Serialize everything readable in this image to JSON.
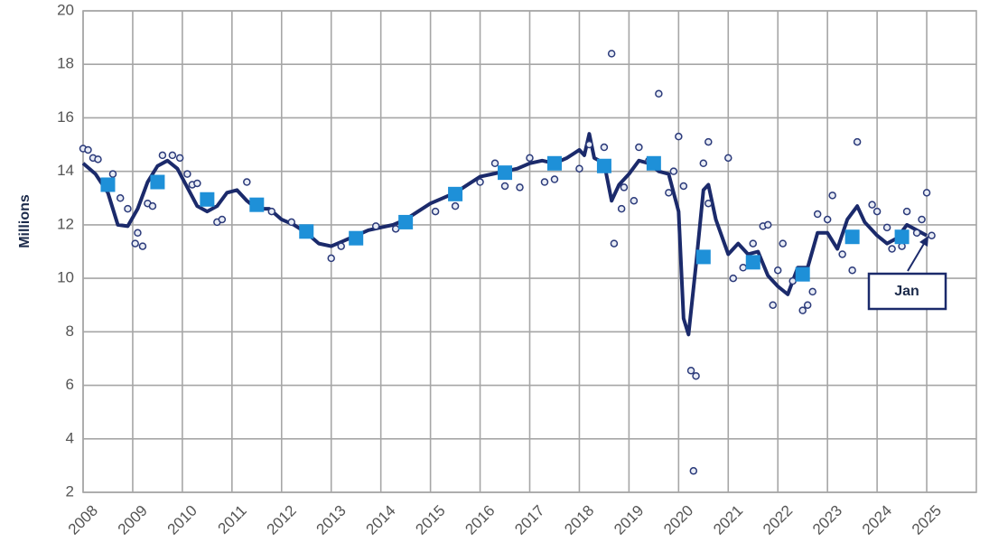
{
  "chart_data": {
    "type": "line",
    "y_label": "Millions",
    "annotation": "Jan",
    "xlim": [
      2008,
      2026
    ],
    "xticks": [
      2008,
      2009,
      2010,
      2011,
      2012,
      2013,
      2014,
      2015,
      2016,
      2017,
      2018,
      2019,
      2020,
      2021,
      2022,
      2023,
      2024,
      2025
    ],
    "ylim": [
      2,
      20
    ],
    "yticks": [
      2,
      4,
      6,
      8,
      10,
      12,
      14,
      16,
      18,
      20
    ],
    "grid": true,
    "series": [
      {
        "type": "line",
        "color": "#1b2a6b",
        "x": [
          2008.0,
          2008.25,
          2008.5,
          2008.7,
          2008.9,
          2009.1,
          2009.3,
          2009.5,
          2009.7,
          2009.9,
          2010.1,
          2010.3,
          2010.5,
          2010.7,
          2010.9,
          2011.1,
          2011.3,
          2011.5,
          2011.75,
          2012.0,
          2012.25,
          2012.5,
          2012.75,
          2013.0,
          2013.25,
          2013.5,
          2013.75,
          2014.0,
          2014.25,
          2014.5,
          2014.75,
          2015.0,
          2015.25,
          2015.5,
          2015.75,
          2016.0,
          2016.25,
          2016.5,
          2016.75,
          2017.0,
          2017.25,
          2017.5,
          2017.75,
          2018.0,
          2018.1,
          2018.2,
          2018.3,
          2018.5,
          2018.65,
          2018.8,
          2019.0,
          2019.2,
          2019.4,
          2019.6,
          2019.8,
          2020.0,
          2020.1,
          2020.2,
          2020.35,
          2020.5,
          2020.6,
          2020.75,
          2021.0,
          2021.2,
          2021.4,
          2021.6,
          2021.8,
          2022.0,
          2022.2,
          2022.4,
          2022.6,
          2022.8,
          2023.0,
          2023.2,
          2023.4,
          2023.6,
          2023.75,
          2024.0,
          2024.2,
          2024.4,
          2024.6,
          2024.8,
          2025.0
        ],
        "values": [
          14.3,
          13.9,
          13.2,
          12.0,
          11.95,
          12.6,
          13.6,
          14.2,
          14.4,
          14.1,
          13.4,
          12.7,
          12.5,
          12.7,
          13.2,
          13.3,
          12.9,
          12.6,
          12.6,
          12.2,
          12.0,
          11.7,
          11.3,
          11.2,
          11.4,
          11.6,
          11.8,
          11.9,
          12.0,
          12.2,
          12.5,
          12.8,
          13.0,
          13.2,
          13.5,
          13.8,
          13.9,
          14.0,
          14.1,
          14.3,
          14.4,
          14.3,
          14.5,
          14.8,
          14.6,
          15.4,
          14.5,
          14.3,
          12.9,
          13.5,
          13.9,
          14.4,
          14.3,
          14.0,
          13.9,
          12.5,
          8.5,
          7.9,
          10.5,
          13.3,
          13.5,
          12.2,
          10.9,
          11.3,
          10.9,
          11.0,
          10.1,
          9.7,
          9.4,
          10.4,
          10.4,
          11.7,
          11.7,
          11.1,
          12.2,
          12.7,
          12.1,
          11.6,
          11.3,
          11.5,
          12.0,
          11.8,
          11.6
        ]
      },
      {
        "type": "scatter",
        "color": "#2b3a7a",
        "x": [
          2008.0,
          2008.1,
          2008.2,
          2008.3,
          2008.6,
          2008.75,
          2008.9,
          2009.05,
          2009.1,
          2009.2,
          2009.3,
          2009.4,
          2009.6,
          2009.8,
          2009.95,
          2010.1,
          2010.2,
          2010.3,
          2010.7,
          2010.8,
          2011.3,
          2011.8,
          2012.2,
          2013.0,
          2013.2,
          2013.9,
          2014.3,
          2015.1,
          2015.5,
          2016.0,
          2016.3,
          2016.5,
          2016.8,
          2017.0,
          2017.3,
          2017.5,
          2018.0,
          2018.2,
          2018.5,
          2018.65,
          2018.7,
          2018.85,
          2018.9,
          2019.1,
          2019.2,
          2019.4,
          2019.6,
          2019.8,
          2019.9,
          2020.0,
          2020.1,
          2020.25,
          2020.3,
          2020.35,
          2020.5,
          2020.6,
          2020.6,
          2021.0,
          2021.1,
          2021.3,
          2021.5,
          2021.7,
          2021.8,
          2021.9,
          2022.0,
          2022.1,
          2022.3,
          2022.5,
          2022.6,
          2022.7,
          2022.8,
          2023.0,
          2023.1,
          2023.3,
          2023.5,
          2023.6,
          2023.9,
          2024.0,
          2024.2,
          2024.3,
          2024.5,
          2024.6,
          2024.8,
          2024.9,
          2025.0,
          2025.1
        ],
        "values": [
          14.85,
          14.8,
          14.5,
          14.45,
          13.9,
          13.0,
          12.6,
          11.3,
          11.7,
          11.2,
          12.8,
          12.7,
          14.6,
          14.6,
          14.5,
          13.9,
          13.5,
          13.55,
          12.1,
          12.2,
          13.6,
          12.5,
          12.1,
          10.75,
          11.2,
          11.95,
          11.85,
          12.5,
          12.7,
          13.6,
          14.3,
          13.45,
          13.4,
          14.5,
          13.6,
          13.7,
          14.1,
          15.0,
          14.9,
          18.4,
          11.3,
          12.6,
          13.4,
          12.9,
          14.9,
          14.4,
          16.9,
          13.2,
          14.0,
          15.3,
          13.45,
          6.55,
          2.8,
          6.35,
          14.3,
          15.1,
          12.8,
          14.5,
          10.0,
          10.4,
          11.3,
          11.95,
          12.0,
          9.0,
          10.3,
          11.3,
          9.9,
          8.8,
          9.0,
          9.5,
          12.4,
          12.2,
          13.1,
          10.9,
          10.3,
          15.1,
          12.75,
          12.5,
          11.9,
          11.1,
          11.2,
          12.5,
          11.7,
          12.2,
          13.2,
          11.6
        ]
      },
      {
        "type": "square",
        "color": "#1e90d8",
        "x": [
          2008.5,
          2009.5,
          2010.5,
          2011.5,
          2012.5,
          2013.5,
          2014.5,
          2015.5,
          2016.5,
          2017.5,
          2018.5,
          2019.5,
          2020.5,
          2021.5,
          2022.5,
          2023.5,
          2024.5
        ],
        "values": [
          13.5,
          13.6,
          12.95,
          12.75,
          11.75,
          11.5,
          12.1,
          13.15,
          13.95,
          14.3,
          14.2,
          14.3,
          10.8,
          10.6,
          10.15,
          11.55,
          11.55
        ]
      }
    ]
  }
}
